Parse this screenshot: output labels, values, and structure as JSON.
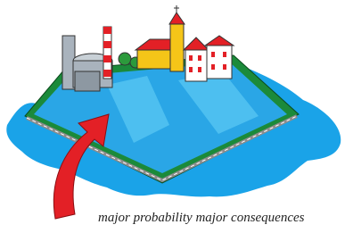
{
  "caption": "major probability major consequences"
}
